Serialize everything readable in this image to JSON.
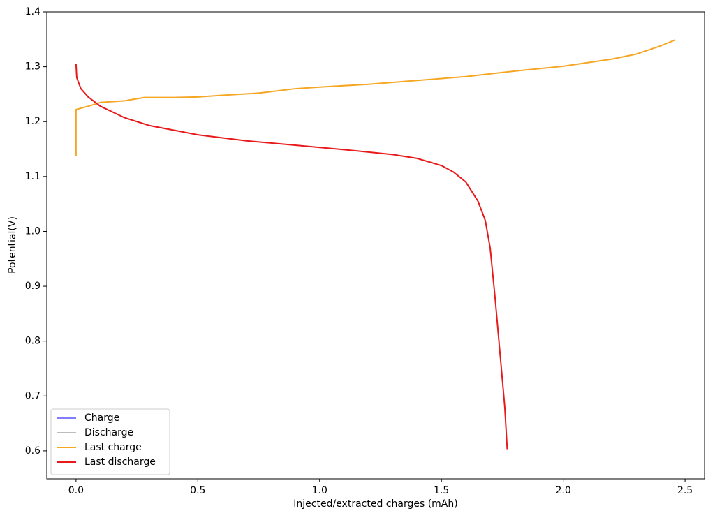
{
  "chart_data": {
    "type": "line",
    "xlabel": "Injected/extracted charges (mAh)",
    "ylabel": "Potential(V)",
    "xlim": [
      -0.12,
      2.58
    ],
    "ylim": [
      0.549,
      1.4
    ],
    "xticks": [
      {
        "value": 0,
        "label": "0.0"
      },
      0.5,
      {
        "value": 1,
        "label": "1.0"
      },
      1.5,
      {
        "value": 2,
        "label": "2.0"
      },
      2.5
    ],
    "yticks": [
      0.6,
      0.7,
      0.8,
      0.9,
      {
        "value": 1,
        "label": "1.0"
      },
      1.1,
      1.2,
      1.3,
      1.4
    ],
    "legend": "lower left",
    "series": [
      {
        "name": "Charge",
        "color": "#8080ff",
        "x": [],
        "values": []
      },
      {
        "name": "Discharge",
        "color": "#bdbdbd",
        "x": [],
        "values": []
      },
      {
        "name": "Last charge",
        "color": "#f5a623",
        "x": [
          0,
          0,
          0.05,
          0.1,
          0.2,
          0.28,
          0.4,
          0.5,
          0.6,
          0.75,
          0.9,
          1.0,
          1.2,
          1.4,
          1.6,
          1.8,
          2.0,
          2.2,
          2.3,
          2.4,
          2.46
        ],
        "values": [
          1.137,
          1.222,
          1.228,
          1.235,
          1.238,
          1.244,
          1.244,
          1.245,
          1.248,
          1.252,
          1.26,
          1.263,
          1.268,
          1.275,
          1.282,
          1.292,
          1.301,
          1.314,
          1.323,
          1.338,
          1.349
        ]
      },
      {
        "name": "Last discharge",
        "color": "#e8191a",
        "x": [
          0,
          0.003,
          0.02,
          0.05,
          0.1,
          0.2,
          0.3,
          0.5,
          0.7,
          0.9,
          1.1,
          1.3,
          1.4,
          1.5,
          1.55,
          1.6,
          1.65,
          1.68,
          1.7,
          1.72,
          1.74,
          1.76,
          1.77
        ],
        "values": [
          1.305,
          1.28,
          1.26,
          1.245,
          1.228,
          1.207,
          1.193,
          1.176,
          1.165,
          1.157,
          1.149,
          1.14,
          1.133,
          1.12,
          1.108,
          1.09,
          1.055,
          1.02,
          0.97,
          0.88,
          0.78,
          0.68,
          0.603
        ]
      }
    ]
  }
}
